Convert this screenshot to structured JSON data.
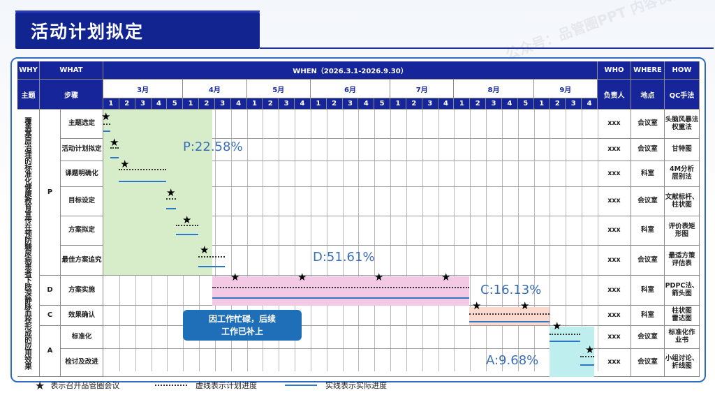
{
  "title": "活动计划拟定",
  "header": {
    "why": "WHY",
    "what": "WHAT",
    "when": "WHEN（2026.3.1-2026.9.30）",
    "who": "WHO",
    "where": "WHERE",
    "how": "HOW",
    "theme": "主题",
    "steps": "步骤",
    "owner": "负责人",
    "location": "地点",
    "qc_method": "QC手法"
  },
  "months": [
    {
      "label": "3月",
      "weeks": [
        "1",
        "2",
        "3",
        "4",
        "5"
      ]
    },
    {
      "label": "4月",
      "weeks": [
        "1",
        "2",
        "3",
        "4"
      ]
    },
    {
      "label": "5月",
      "weeks": [
        "1",
        "2",
        "3",
        "4"
      ]
    },
    {
      "label": "6月",
      "weeks": [
        "1",
        "2",
        "3",
        "4",
        "5"
      ]
    },
    {
      "label": "7月",
      "weeks": [
        "1",
        "2",
        "3",
        "4"
      ]
    },
    {
      "label": "8月",
      "weeks": [
        "1",
        "2",
        "3",
        "4",
        "5"
      ]
    },
    {
      "label": "9月",
      "weeks": [
        "1",
        "2",
        "3",
        "4"
      ]
    }
  ],
  "theme_text": "覆盖基层治理的标准化健康教育宣传在预防糖尿病患者下肢深静脉血栓形成的应用效果",
  "phases": {
    "p": "P",
    "d": "D",
    "c": "C",
    "a": "A"
  },
  "rows": [
    {
      "step": "主题选定",
      "owner": "xxx",
      "location": "会议室",
      "method": "头脑风暴法\n权重法"
    },
    {
      "step": "活动计划拟定",
      "owner": "xxx",
      "location": "会议室",
      "method": "甘特图"
    },
    {
      "step": "课题明确化",
      "owner": "xxx",
      "location": "科室",
      "method": "4M分析\n层别法"
    },
    {
      "step": "目标设定",
      "owner": "xxx",
      "location": "会议室",
      "method": "文献标杆、\n柱状图"
    },
    {
      "step": "方案拟定",
      "owner": "xxx",
      "location": "科室",
      "method": "评价表矩\n形图"
    },
    {
      "step": "最佳方案追究",
      "owner": "xxx",
      "location": "会议室",
      "method": "最适方策\n评估表"
    },
    {
      "step": "方案实施",
      "owner": "xxx",
      "location": "科室",
      "method": "PDPC法、\n箭头图"
    },
    {
      "step": "效果确认",
      "owner": "xxx",
      "location": "科室",
      "method": "柱状图\n雷达图"
    },
    {
      "step": "标准化",
      "owner": "xxx",
      "location": "会议室",
      "method": "标准化作\n业书"
    },
    {
      "step": "检讨及改进",
      "owner": "xxx",
      "location": "会议室",
      "method": "小组讨论、\n折线图"
    }
  ],
  "percentages": {
    "p": "P:22.58%",
    "d": "D:51.61%",
    "c": "C:16.13%",
    "a": "A:9.68%"
  },
  "note": "因工作忙碌，后续\n工作已补上",
  "legend": {
    "star": "表示召开品管圈会议",
    "dotted": "虚线表示计划进度",
    "solid": "实线表示实际进度"
  },
  "colors": {
    "header_bg": "#16269a",
    "p_region": "#d7ecc8",
    "d_region": "#f4c9e6",
    "c_region": "#fbd9cf",
    "a_region": "#bfeeee",
    "actual_line": "#2a78c6"
  }
}
